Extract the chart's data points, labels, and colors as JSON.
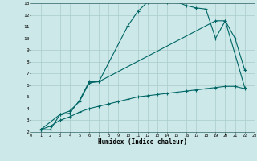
{
  "xlabel": "Humidex (Indice chaleur)",
  "bg_color": "#cce8e8",
  "grid_color": "#aacccc",
  "line_color": "#006666",
  "xlim": [
    0,
    23
  ],
  "ylim": [
    2,
    13
  ],
  "xticks": [
    0,
    1,
    2,
    3,
    4,
    5,
    6,
    7,
    8,
    9,
    10,
    11,
    12,
    13,
    14,
    15,
    16,
    17,
    18,
    19,
    20,
    21,
    22,
    23
  ],
  "yticks": [
    2,
    3,
    4,
    5,
    6,
    7,
    8,
    9,
    10,
    11,
    12,
    13
  ],
  "line1_x": [
    1,
    2,
    3,
    4,
    5,
    6,
    7,
    10,
    11,
    12,
    13,
    14,
    15,
    16,
    17,
    18,
    19,
    20,
    21,
    22
  ],
  "line1_y": [
    2.2,
    2.2,
    3.5,
    3.6,
    4.7,
    6.3,
    6.3,
    11.1,
    12.3,
    13.1,
    13.2,
    13.1,
    13.1,
    12.8,
    12.6,
    12.5,
    10.0,
    11.5,
    10.0,
    7.3
  ],
  "line2_x": [
    1,
    3,
    4,
    5,
    6,
    7,
    19,
    20,
    22
  ],
  "line2_y": [
    2.2,
    3.5,
    3.8,
    4.6,
    6.2,
    6.3,
    11.5,
    11.5,
    5.8
  ],
  "line3_x": [
    1,
    2,
    3,
    4,
    5,
    6,
    7,
    8,
    9,
    10,
    11,
    12,
    13,
    14,
    15,
    16,
    17,
    18,
    19,
    20,
    21,
    22
  ],
  "line3_y": [
    2.2,
    2.5,
    3.0,
    3.3,
    3.7,
    4.0,
    4.2,
    4.4,
    4.6,
    4.8,
    5.0,
    5.1,
    5.2,
    5.3,
    5.4,
    5.5,
    5.6,
    5.7,
    5.8,
    5.9,
    5.9,
    5.7
  ]
}
